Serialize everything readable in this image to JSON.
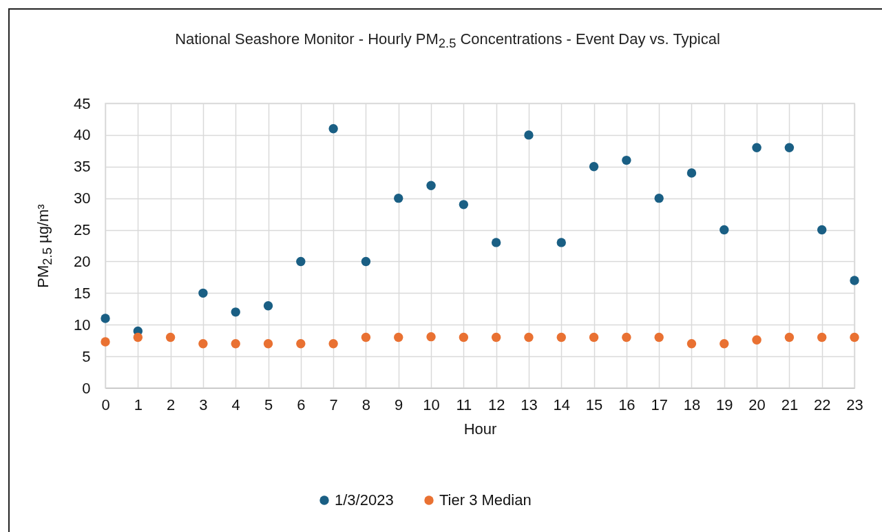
{
  "chart_data": {
    "type": "scatter",
    "title": "National Seashore Monitor -  Hourly PM$_{2.5}$ Concentrations - Event Day vs. Typical",
    "xlabel": "Hour",
    "ylabel": "PM$_{2.5}$ µg/m³",
    "x": [
      0,
      1,
      2,
      3,
      4,
      5,
      6,
      7,
      8,
      9,
      10,
      11,
      12,
      13,
      14,
      15,
      16,
      17,
      18,
      19,
      20,
      21,
      22,
      23
    ],
    "series": [
      {
        "name": "1/3/2023",
        "color": "#1a5f84",
        "values": [
          11,
          9,
          null,
          15,
          12,
          13,
          20,
          41,
          20,
          30,
          32,
          29,
          23,
          40,
          23,
          35,
          36,
          30,
          34,
          25,
          38,
          38,
          25,
          17
        ]
      },
      {
        "name": "Tier 3 Median",
        "color": "#e97132",
        "values": [
          7.3,
          8,
          8,
          7,
          7,
          7,
          7,
          7,
          8,
          8,
          8.1,
          8,
          8,
          8,
          8,
          8,
          8,
          8,
          7,
          7,
          7.6,
          8,
          8,
          8
        ]
      }
    ],
    "xlim": [
      0,
      23
    ],
    "xticks": [
      0,
      1,
      2,
      3,
      4,
      5,
      6,
      7,
      8,
      9,
      10,
      11,
      12,
      13,
      14,
      15,
      16,
      17,
      18,
      19,
      20,
      21,
      22,
      23
    ],
    "ylim": [
      0,
      45
    ],
    "yticks": [
      0,
      5,
      10,
      15,
      20,
      25,
      30,
      35,
      40,
      45
    ],
    "grid": true,
    "legend": "bottom",
    "marker": "circle"
  }
}
